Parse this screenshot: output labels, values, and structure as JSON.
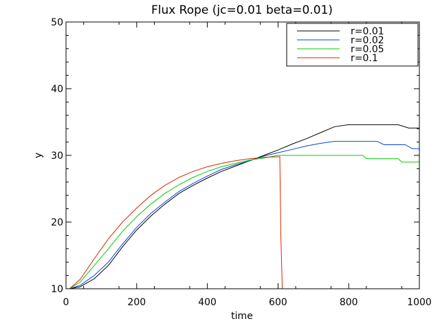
{
  "chart_data": {
    "type": "line",
    "title": "Flux Rope (jc=0.01 beta=0.01)",
    "xlabel": "time",
    "ylabel": "y",
    "xlim": [
      0,
      1000
    ],
    "ylim": [
      10,
      50
    ],
    "xticks": [
      "0",
      "200",
      "400",
      "600",
      "800",
      "1000"
    ],
    "yticks": [
      "10",
      "20",
      "30",
      "40",
      "50"
    ],
    "legend_position": "top-right",
    "grid": false,
    "series": [
      {
        "name": "r=0.01",
        "color": "#000000",
        "points": [
          [
            10,
            10
          ],
          [
            40,
            10.3
          ],
          [
            80,
            11.5
          ],
          [
            120,
            13.5
          ],
          [
            160,
            16.3
          ],
          [
            200,
            18.8
          ],
          [
            240,
            20.9
          ],
          [
            280,
            22.7
          ],
          [
            320,
            24.3
          ],
          [
            360,
            25.5
          ],
          [
            400,
            26.6
          ],
          [
            440,
            27.6
          ],
          [
            480,
            28.4
          ],
          [
            520,
            29.2
          ],
          [
            560,
            30.0
          ],
          [
            600,
            30.8
          ],
          [
            640,
            31.7
          ],
          [
            680,
            32.5
          ],
          [
            720,
            33.4
          ],
          [
            760,
            34.3
          ],
          [
            800,
            34.6
          ],
          [
            940,
            34.6
          ],
          [
            970,
            34.1
          ],
          [
            1000,
            34.1
          ]
        ]
      },
      {
        "name": "r=0.02",
        "color": "#0044dd",
        "points": [
          [
            10,
            10
          ],
          [
            40,
            10.5
          ],
          [
            80,
            12.0
          ],
          [
            120,
            14.0
          ],
          [
            160,
            16.7
          ],
          [
            200,
            19.2
          ],
          [
            240,
            21.3
          ],
          [
            280,
            23.0
          ],
          [
            320,
            24.6
          ],
          [
            360,
            25.8
          ],
          [
            400,
            26.9
          ],
          [
            440,
            27.9
          ],
          [
            480,
            28.6
          ],
          [
            520,
            29.2
          ],
          [
            560,
            29.9
          ],
          [
            600,
            30.4
          ],
          [
            640,
            30.9
          ],
          [
            680,
            31.4
          ],
          [
            720,
            31.8
          ],
          [
            760,
            32.1
          ],
          [
            880,
            32.1
          ],
          [
            900,
            31.6
          ],
          [
            960,
            31.6
          ],
          [
            980,
            31.0
          ],
          [
            1000,
            31.0
          ]
        ]
      },
      {
        "name": "r=0.05",
        "color": "#00cc00",
        "points": [
          [
            10,
            10
          ],
          [
            40,
            11.0
          ],
          [
            80,
            13.5
          ],
          [
            120,
            16.0
          ],
          [
            160,
            18.6
          ],
          [
            200,
            20.8
          ],
          [
            240,
            22.7
          ],
          [
            280,
            24.3
          ],
          [
            320,
            25.6
          ],
          [
            360,
            26.7
          ],
          [
            400,
            27.6
          ],
          [
            440,
            28.3
          ],
          [
            480,
            28.8
          ],
          [
            520,
            29.3
          ],
          [
            560,
            29.6
          ],
          [
            600,
            30.0
          ],
          [
            840,
            30.0
          ],
          [
            850,
            29.5
          ],
          [
            940,
            29.5
          ],
          [
            950,
            29.0
          ],
          [
            1000,
            29.0
          ]
        ]
      },
      {
        "name": "r=0.1",
        "color": "#dd2200",
        "points": [
          [
            10,
            10
          ],
          [
            40,
            11.4
          ],
          [
            80,
            14.5
          ],
          [
            120,
            17.5
          ],
          [
            160,
            20.0
          ],
          [
            200,
            22.1
          ],
          [
            240,
            24.0
          ],
          [
            280,
            25.5
          ],
          [
            320,
            26.7
          ],
          [
            360,
            27.6
          ],
          [
            400,
            28.3
          ],
          [
            440,
            28.8
          ],
          [
            480,
            29.2
          ],
          [
            520,
            29.5
          ],
          [
            560,
            29.7
          ],
          [
            605,
            29.8
          ],
          [
            608,
            18.0
          ],
          [
            612,
            10.0
          ]
        ]
      }
    ]
  }
}
